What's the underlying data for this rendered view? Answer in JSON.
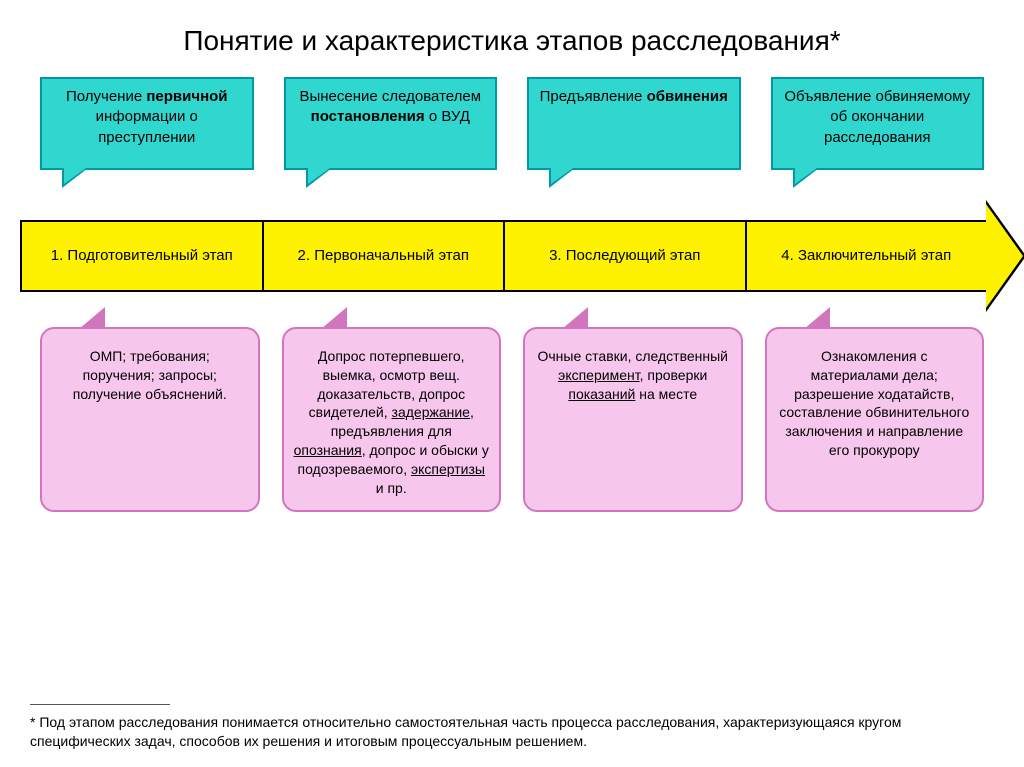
{
  "title": "Понятие и характеристика этапов расследования*",
  "colors": {
    "top_fill": "#2fd7cf",
    "top_border": "#0097a7",
    "arrow_fill": "#fff200",
    "bottom_fill": "#f7c6ec",
    "bottom_border": "#d176be"
  },
  "top_boxes": [
    "Получение <b>первичной</b> информации о преступлении",
    "Вынесение следователем <b>постановления</b> о ВУД",
    "Предъявление <b>обвинения</b>",
    "Объявление обвиняемому об окончании расследования"
  ],
  "stages": [
    "1. Подготовительный этап",
    "2. Первоначальный этап",
    "3. Последующий этап",
    "4. Заключительный этап"
  ],
  "bottom_boxes": [
    "ОМП; требования; поручения; запросы; получение объяснений.",
    "Допрос потерпевшего, выемка, осмотр вещ. доказательств, допрос свидетелей, <u>задержание</u>, предъявления для <u>опознания</u>, допрос и обыски у подозреваемого, <u>экспертизы</u> и пр.",
    "Очные ставки, следственный <u>эксперимент</u>, проверки <u>показаний</u> на месте",
    "Ознакомления с материалами дела; разрешение ходатайств, составление обвинительного заключения и направление его прокурору"
  ],
  "footnote": "* Под этапом расследования понимается относительно самостоятельная часть процесса расследования, характеризующаяся кругом специфических задач, способов их решения и итоговым процессуальным решением."
}
